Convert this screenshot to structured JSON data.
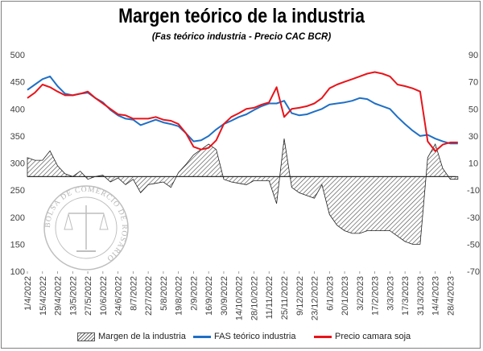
{
  "chart_data": {
    "type": "line",
    "title": "Margen teórico de la industria",
    "subtitle": "(Fas teórico industria - Precio CAC BCR)",
    "left_axis": {
      "min": 100,
      "max": 500,
      "ticks": [
        "100",
        "150",
        "200",
        "250",
        "300",
        "350",
        "400",
        "450",
        "500"
      ]
    },
    "right_axis": {
      "min": -70,
      "max": 90,
      "ticks": [
        "-70",
        "-50",
        "-30",
        "-10",
        "10",
        "30",
        "50",
        "70",
        "90"
      ]
    },
    "grid": false,
    "legend_position": "bottom",
    "x_tick_labels": [
      "1/4/2022",
      "15/4/2022",
      "29/4/2022",
      "13/5/2022",
      "27/5/2022",
      "10/6/2022",
      "24/6/2022",
      "8/7/2022",
      "22/7/2022",
      "5/8/2022",
      "19/8/2022",
      "2/9/2022",
      "16/9/2022",
      "30/9/2022",
      "14/10/2022",
      "28/10/2022",
      "11/11/2022",
      "25/11/2022",
      "9/12/2022",
      "23/12/2022",
      "6/1/2023",
      "20/1/2023",
      "3/2/2023",
      "17/2/2023",
      "3/3/2023",
      "17/3/2023",
      "31/3/2023",
      "14/4/2023",
      "28/4/2023"
    ],
    "x": [
      "1/4/2022",
      "8/4/2022",
      "15/4/2022",
      "22/4/2022",
      "29/4/2022",
      "6/5/2022",
      "13/5/2022",
      "20/5/2022",
      "27/5/2022",
      "3/6/2022",
      "10/6/2022",
      "17/6/2022",
      "24/6/2022",
      "1/7/2022",
      "8/7/2022",
      "15/7/2022",
      "22/7/2022",
      "29/7/2022",
      "5/8/2022",
      "12/8/2022",
      "19/8/2022",
      "26/8/2022",
      "2/9/2022",
      "9/9/2022",
      "16/9/2022",
      "23/9/2022",
      "30/9/2022",
      "7/10/2022",
      "14/10/2022",
      "21/10/2022",
      "28/10/2022",
      "4/11/2022",
      "11/11/2022",
      "18/11/2022",
      "25/11/2022",
      "2/12/2022",
      "9/12/2022",
      "16/12/2022",
      "23/12/2022",
      "30/12/2022",
      "6/1/2023",
      "13/1/2023",
      "20/1/2023",
      "27/1/2023",
      "3/2/2023",
      "10/2/2023",
      "17/2/2023",
      "24/2/2023",
      "3/3/2023",
      "10/3/2023",
      "17/3/2023",
      "24/3/2023",
      "31/3/2023",
      "7/4/2023",
      "14/4/2023",
      "21/4/2023",
      "28/4/2023",
      "5/5/2023"
    ],
    "series": [
      {
        "name": "Margen de la industria",
        "axis": "right",
        "style": "hatched-area",
        "values": [
          14,
          12,
          12,
          19,
          8,
          2,
          0,
          4,
          -2,
          0,
          1,
          -4,
          -1,
          -6,
          -2,
          -12,
          -6,
          -5,
          -4,
          -8,
          3,
          9,
          16,
          20,
          24,
          20,
          -2,
          -4,
          -5,
          -6,
          -3,
          -3,
          -3,
          -20,
          28,
          -8,
          -12,
          -14,
          -16,
          -6,
          -28,
          -36,
          -40,
          -42,
          -42,
          -40,
          -40,
          -40,
          -40,
          -44,
          -48,
          -50,
          -50,
          14,
          24,
          6,
          -2,
          -2
        ]
      },
      {
        "name": "FAS teórico industria",
        "axis": "left",
        "color": "#1f6fc5",
        "values": [
          435,
          445,
          455,
          460,
          442,
          428,
          425,
          428,
          430,
          420,
          412,
          398,
          388,
          382,
          380,
          370,
          375,
          380,
          375,
          372,
          368,
          355,
          340,
          342,
          350,
          362,
          372,
          378,
          385,
          390,
          398,
          405,
          410,
          410,
          415,
          392,
          388,
          390,
          395,
          400,
          408,
          410,
          412,
          415,
          420,
          418,
          410,
          405,
          400,
          385,
          372,
          360,
          350,
          352,
          345,
          340,
          336,
          336
        ]
      },
      {
        "name": "Precio camara soja",
        "axis": "left",
        "color": "#e8141a",
        "values": [
          420,
          430,
          445,
          440,
          432,
          425,
          425,
          428,
          432,
          420,
          410,
          400,
          390,
          388,
          382,
          382,
          382,
          385,
          380,
          378,
          372,
          355,
          330,
          325,
          328,
          342,
          372,
          385,
          392,
          400,
          402,
          408,
          412,
          440,
          385,
          400,
          402,
          405,
          410,
          420,
          438,
          445,
          450,
          455,
          460,
          465,
          468,
          465,
          460,
          445,
          442,
          438,
          432,
          340,
          322,
          334,
          338,
          338
        ]
      }
    ]
  },
  "watermark_text": "BOLSA DE COMERCIO DE ROSARIO"
}
